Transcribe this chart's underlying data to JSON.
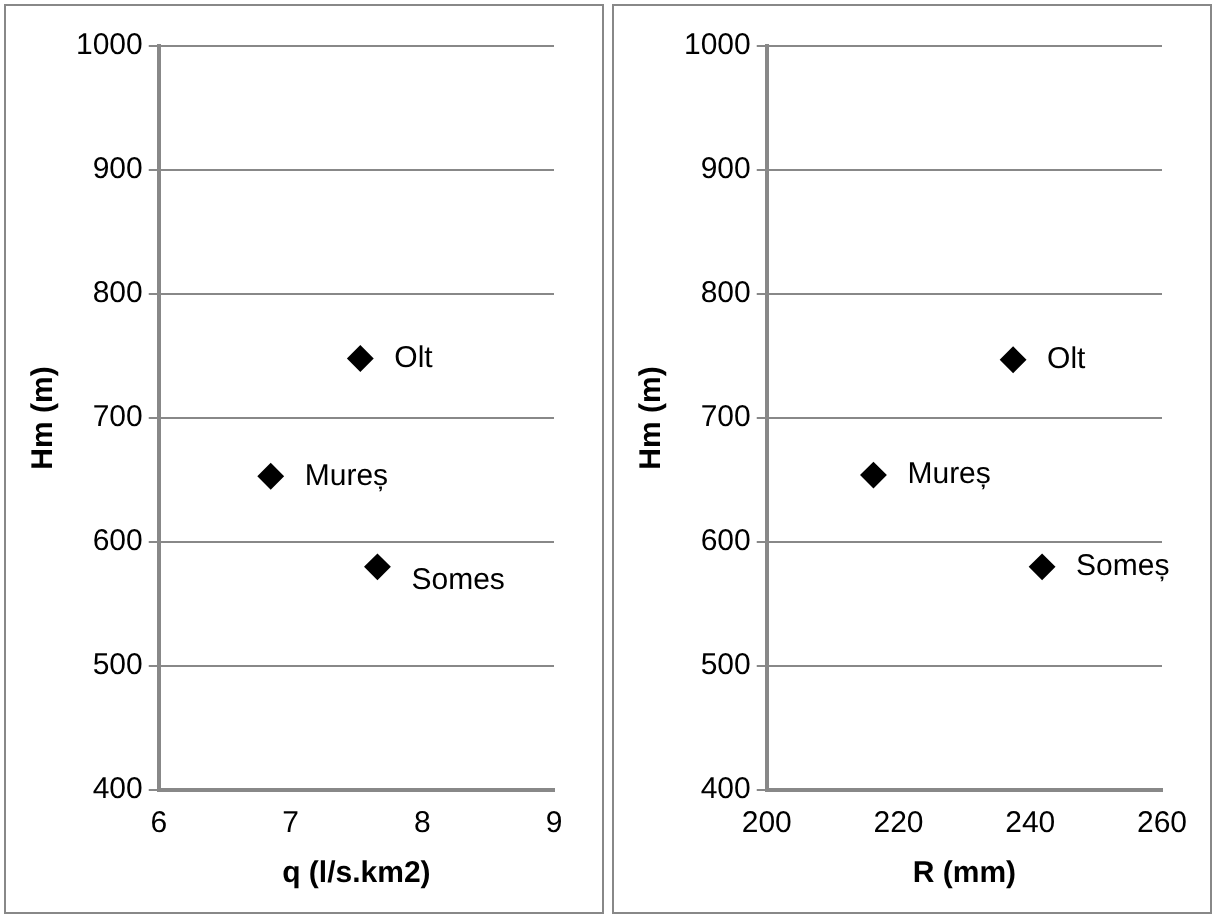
{
  "chart_data": [
    {
      "type": "scatter",
      "xlabel": "q (l/s.km2)",
      "ylabel": "Hm (m)",
      "xlim": [
        6,
        9
      ],
      "xticks": [
        6,
        7,
        8,
        9
      ],
      "ylim": [
        400,
        1000
      ],
      "yticks": [
        400,
        500,
        600,
        700,
        800,
        900,
        1000
      ],
      "grid": "y",
      "marker": "diamond",
      "legend": false,
      "series": [
        {
          "color": "#000000",
          "x": [
            7.53,
            6.85,
            7.66
          ],
          "values": [
            748,
            653,
            580
          ]
        }
      ],
      "annotations": [
        {
          "text": "Olt",
          "x": 7.53,
          "y": 748
        },
        {
          "text": "Mureș",
          "x": 6.85,
          "y": 653
        },
        {
          "text": "Somes",
          "x": 7.66,
          "y": 580
        }
      ]
    },
    {
      "type": "scatter",
      "xlabel": "R (mm)",
      "ylabel": "Hm (m)",
      "xlim": [
        200,
        260
      ],
      "xticks": [
        200,
        220,
        240,
        260
      ],
      "ylim": [
        400,
        1000
      ],
      "yticks": [
        400,
        500,
        600,
        700,
        800,
        900,
        1000
      ],
      "grid": "y",
      "marker": "diamond",
      "legend": false,
      "series": [
        {
          "color": "#000000",
          "x": [
            237.4,
            216.2,
            241.8
          ],
          "values": [
            747,
            654,
            580
          ]
        }
      ],
      "annotations": [
        {
          "text": "Olt",
          "x": 237.4,
          "y": 747
        },
        {
          "text": "Mureș",
          "x": 216.2,
          "y": 654
        },
        {
          "text": "Someș",
          "x": 241.8,
          "y": 580
        }
      ]
    }
  ]
}
